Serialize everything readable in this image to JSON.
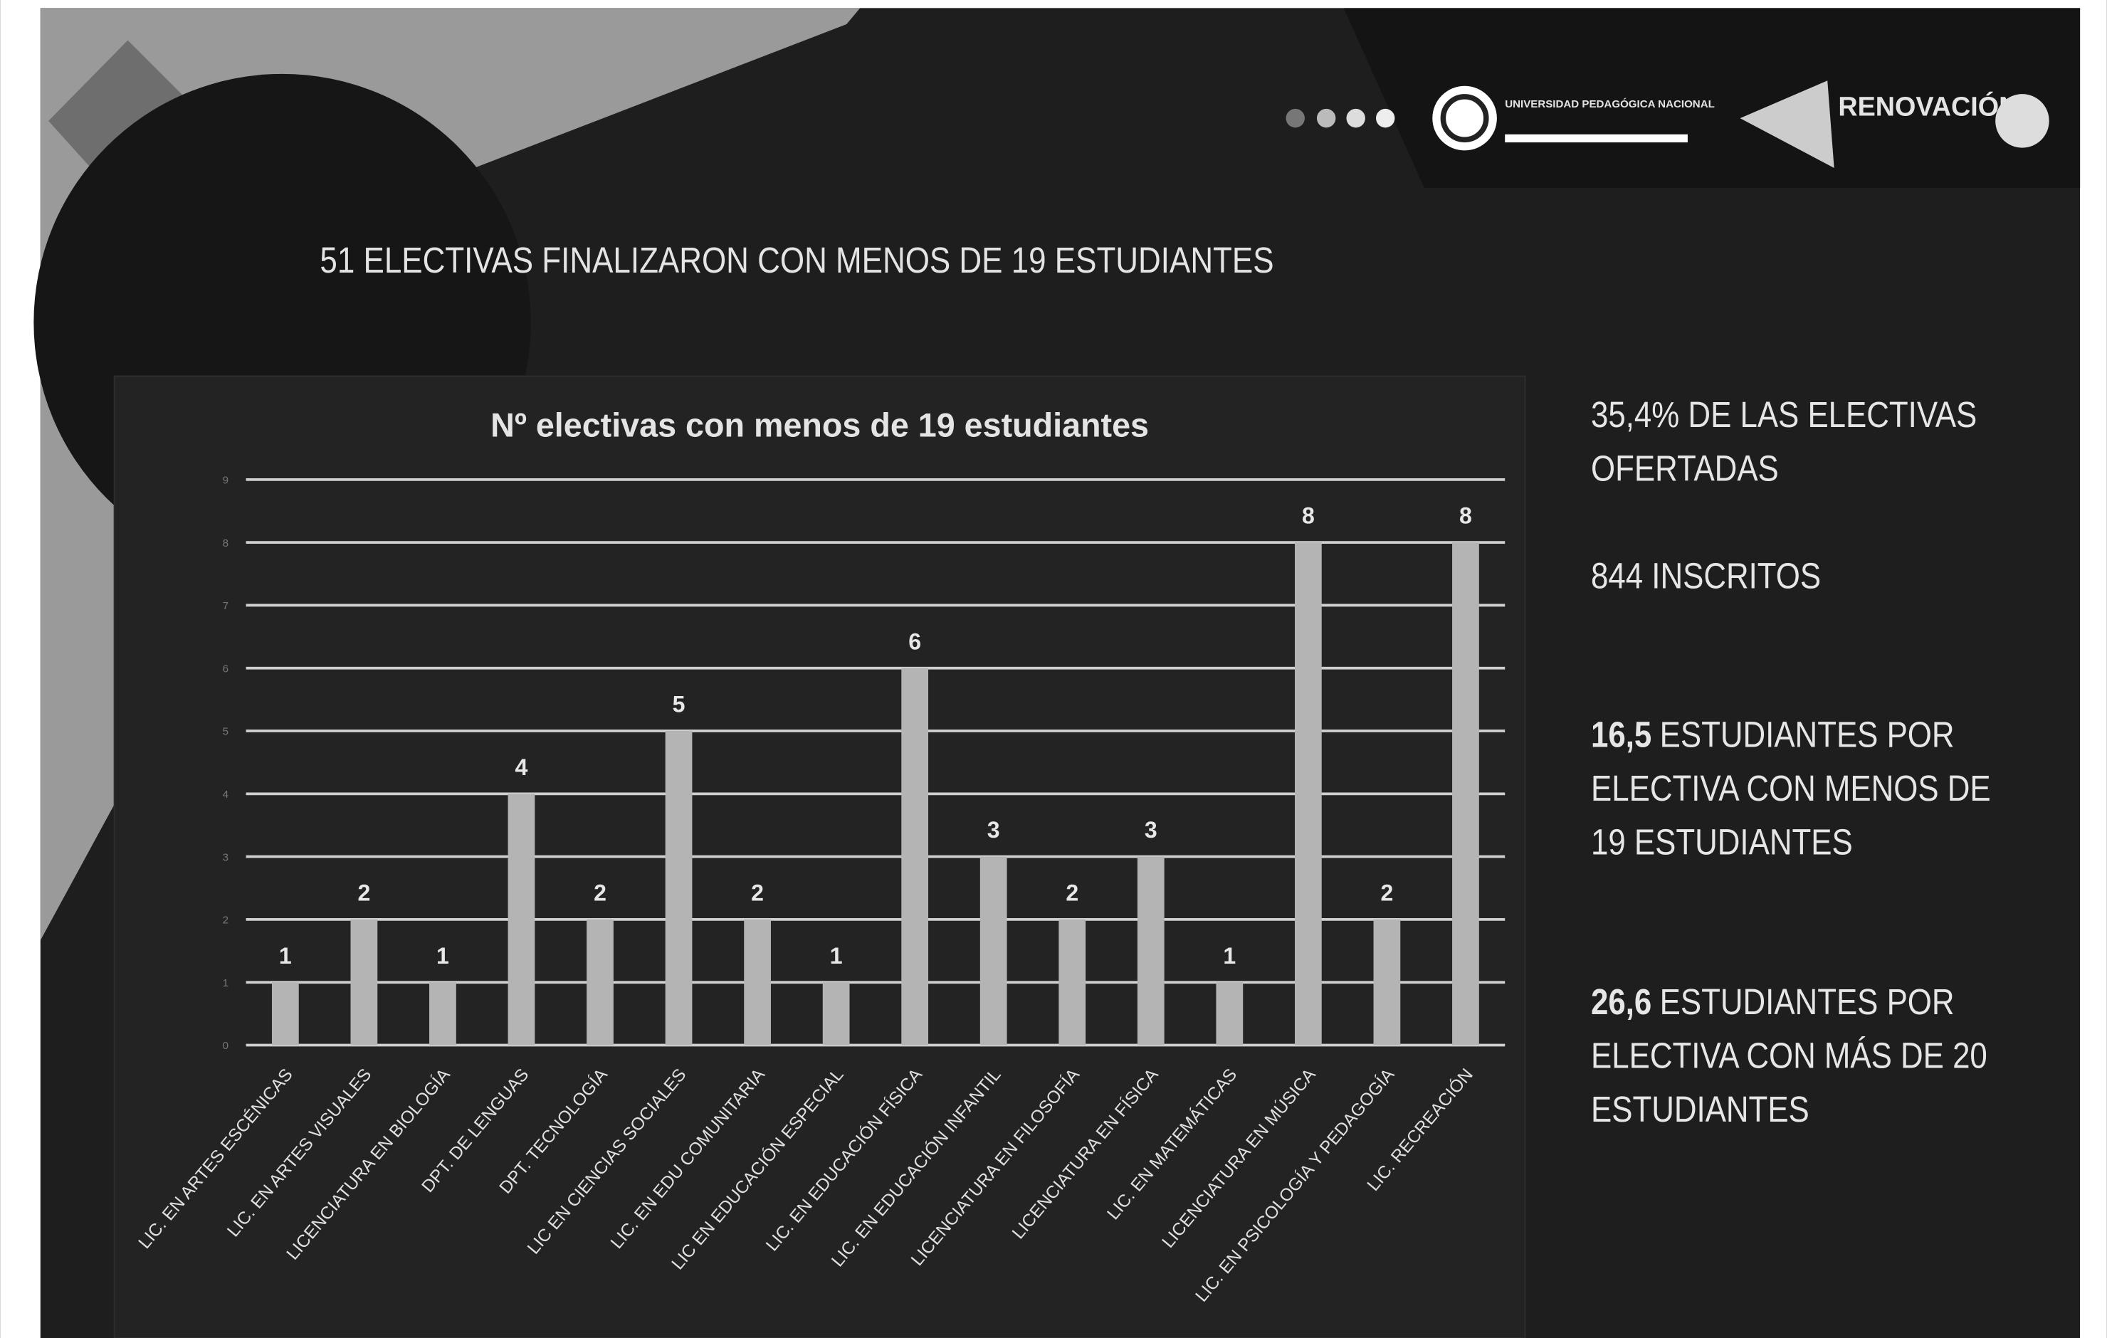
{
  "slide": {
    "title": "51 ELECTIVAS FINALIZARON CON MENOS DE 19 ESTUDIANTES",
    "logo_text": "UNIVERSIDAD PEDAGÓGICA NACIONAL",
    "badge_text": "RENOVACIÓN",
    "facts": [
      {
        "lines": [
          "35,4% DE LAS ELECTIVAS",
          "OFERTADAS"
        ]
      },
      {
        "lines": [
          "844 INSCRITOS"
        ]
      },
      {
        "bold": "16,5",
        "lines": [
          "ESTUDIANTES POR",
          "ELECTIVA CON MENOS DE",
          "19 ESTUDIANTES"
        ]
      },
      {
        "bold": "26,6",
        "lines": [
          "ESTUDIANTES POR",
          "ELECTIVA CON MÁS DE 20",
          "ESTUDIANTES"
        ]
      }
    ]
  },
  "chart_data": {
    "type": "bar",
    "title": "Nº electivas con menos de 19 estudiantes",
    "categories": [
      "LIC. EN ARTES ESCÉNICAS",
      "LIC. EN ARTES VISUALES",
      "LICENCIATURA EN BIOLOGÍA",
      "DPT. DE LENGUAS",
      "DPT. TECNOLOGÍA",
      "LIC EN CIENCIAS SOCIALES",
      "LIC. EN EDU COMUNITARIA",
      "LIC EN EDUCACIÓN ESPECIAL",
      "LIC. EN EDUCACIÓN FÍSICA",
      "LIC. EN EDUCACIÓN INFANTIL",
      "LICENCIATURA EN FILOSOFÍA",
      "LICENCIATURA EN FÍSICA",
      "LIC. EN MATEMÁTICAS",
      "LICENCIATURA EN MÚSICA",
      "LIC. EN PSICOLOGÍA Y PEDAGOGÍA",
      "LIC. RECREACIÓN"
    ],
    "values": [
      1,
      2,
      1,
      4,
      2,
      5,
      2,
      1,
      6,
      3,
      2,
      3,
      1,
      8,
      2,
      8
    ],
    "color": "#b4b4b4",
    "ylim": [
      0,
      9
    ],
    "yticks": [
      0,
      1,
      2,
      3,
      4,
      5,
      6,
      7,
      8,
      9
    ],
    "grid": true
  }
}
